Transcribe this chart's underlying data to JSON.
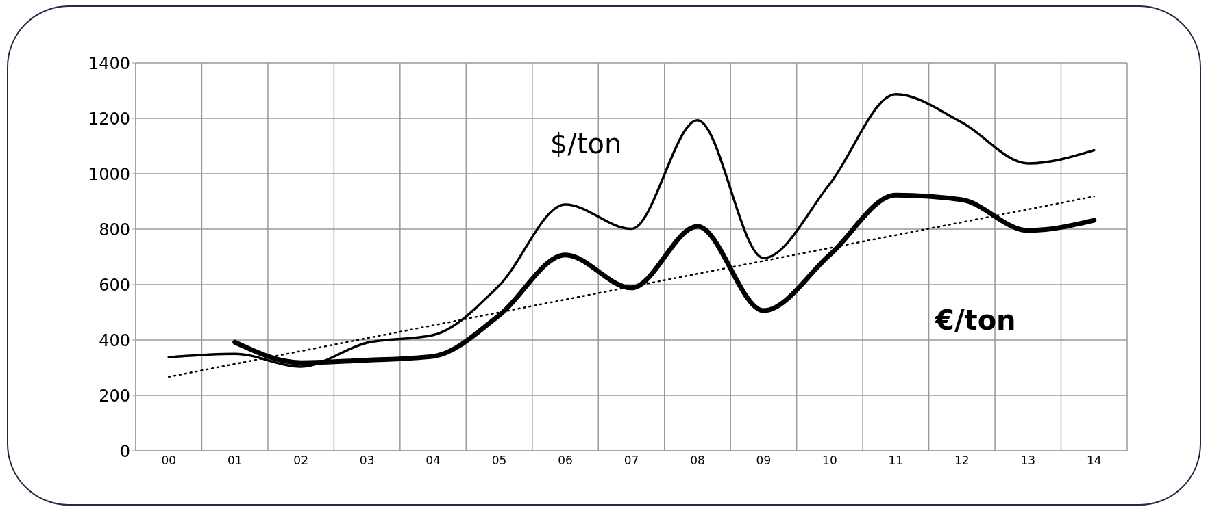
{
  "chart_data": {
    "type": "line",
    "categories": [
      "00",
      "01",
      "02",
      "03",
      "04",
      "05",
      "06",
      "07",
      "08",
      "09",
      "10",
      "11",
      "12",
      "13",
      "14"
    ],
    "series": [
      {
        "name": "$/ton",
        "color": "#000000",
        "values": [
          338,
          350,
          304,
          390,
          418,
          597,
          889,
          801,
          1193,
          696,
          963,
          1287,
          1185,
          1037,
          1085
        ],
        "line_style": "solid"
      },
      {
        "name": "€/ton",
        "color": "#000000",
        "values": [
          null,
          392,
          318,
          327,
          341,
          489,
          707,
          588,
          810,
          506,
          707,
          923,
          906,
          795,
          832
        ],
        "line_style": "solid"
      },
      {
        "color": "#000000",
        "values": [
          267,
          null,
          null,
          null,
          null,
          null,
          null,
          null,
          null,
          null,
          null,
          null,
          null,
          null,
          918
        ],
        "line_style": "dotted"
      }
    ],
    "ylim": [
      0,
      1400
    ],
    "yticks": [
      0,
      200,
      400,
      600,
      800,
      1000,
      1200,
      1400
    ],
    "grid": true,
    "marker": "none"
  }
}
